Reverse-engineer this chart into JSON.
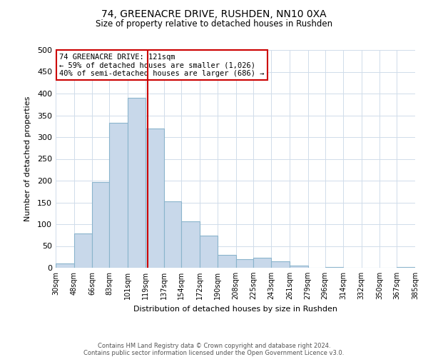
{
  "title": "74, GREENACRE DRIVE, RUSHDEN, NN10 0XA",
  "subtitle": "Size of property relative to detached houses in Rushden",
  "xlabel": "Distribution of detached houses by size in Rushden",
  "ylabel": "Number of detached properties",
  "bar_color": "#c8d8ea",
  "bar_edge_color": "#8ab4cc",
  "background_color": "#ffffff",
  "grid_color": "#d0dcea",
  "bin_edges": [
    30,
    48,
    66,
    83,
    101,
    119,
    137,
    154,
    172,
    190,
    208,
    225,
    243,
    261,
    279,
    296,
    314,
    332,
    350,
    367,
    385
  ],
  "bin_labels": [
    "30sqm",
    "48sqm",
    "66sqm",
    "83sqm",
    "101sqm",
    "119sqm",
    "137sqm",
    "154sqm",
    "172sqm",
    "190sqm",
    "208sqm",
    "225sqm",
    "243sqm",
    "261sqm",
    "279sqm",
    "296sqm",
    "314sqm",
    "332sqm",
    "350sqm",
    "367sqm",
    "385sqm"
  ],
  "counts": [
    10,
    78,
    197,
    333,
    390,
    320,
    152,
    107,
    74,
    30,
    20,
    23,
    14,
    5,
    0,
    1,
    0,
    0,
    0,
    2
  ],
  "property_value": 121,
  "vline_color": "#cc0000",
  "annotation_box_edge_color": "#cc0000",
  "annotation_text_line1": "74 GREENACRE DRIVE: 121sqm",
  "annotation_text_line2": "← 59% of detached houses are smaller (1,026)",
  "annotation_text_line3": "40% of semi-detached houses are larger (686) →",
  "footer_line1": "Contains HM Land Registry data © Crown copyright and database right 2024.",
  "footer_line2": "Contains public sector information licensed under the Open Government Licence v3.0.",
  "ylim": [
    0,
    500
  ],
  "yticks": [
    0,
    50,
    100,
    150,
    200,
    250,
    300,
    350,
    400,
    450,
    500
  ]
}
